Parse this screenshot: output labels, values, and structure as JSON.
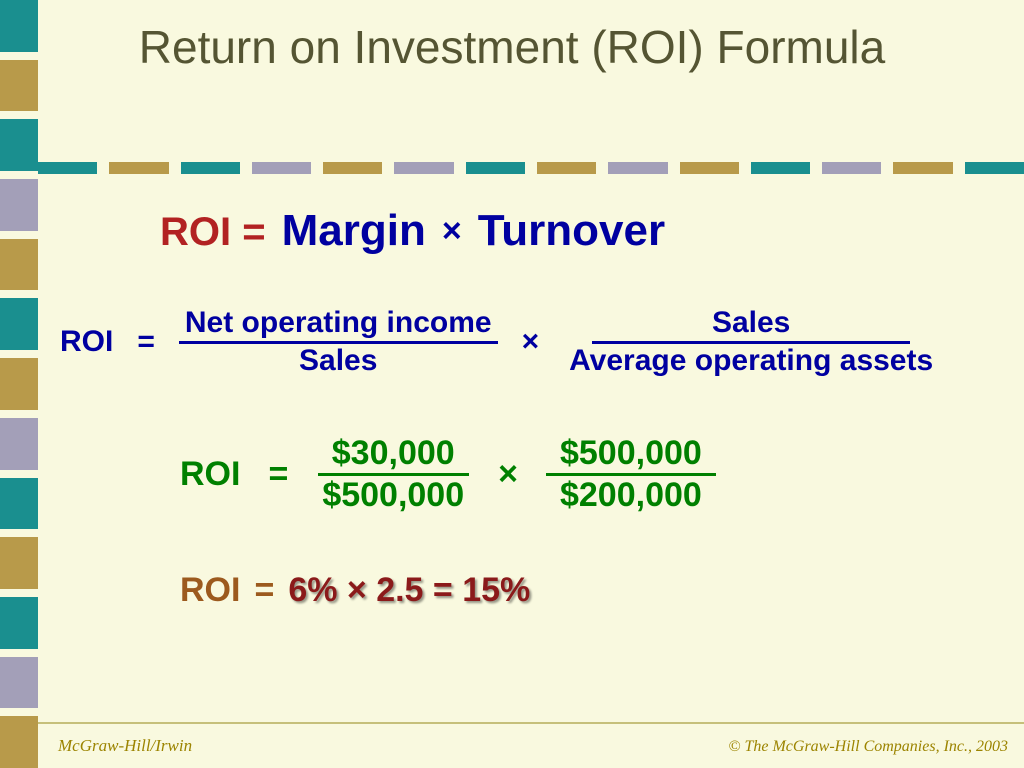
{
  "title": "Return on Investment (ROI) Formula",
  "left_bar_colors": [
    "#1a8f8f",
    "#b89a4a",
    "#1a8f8f",
    "#a39fb8",
    "#b89a4a",
    "#1a8f8f",
    "#b89a4a",
    "#a39fb8",
    "#1a8f8f",
    "#b89a4a",
    "#1a8f8f",
    "#a39fb8",
    "#b89a4a"
  ],
  "top_bar_colors": [
    "#1a8f8f",
    "#b89a4a",
    "#1a8f8f",
    "#a39fb8",
    "#b89a4a",
    "#a39fb8",
    "#1a8f8f",
    "#b89a4a",
    "#a39fb8",
    "#b89a4a",
    "#1a8f8f",
    "#a39fb8",
    "#b89a4a",
    "#1a8f8f"
  ],
  "row1": {
    "lhs": "ROI =",
    "term1": "Margin",
    "times": "×",
    "term2": "Turnover"
  },
  "row2": {
    "lhs": "ROI",
    "eq": "=",
    "times": "×",
    "frac1": {
      "num": "Net operating income",
      "den": "Sales"
    },
    "frac2": {
      "num": "Sales",
      "den": "Average operating assets"
    }
  },
  "row3": {
    "lhs": "ROI",
    "eq": "=",
    "times": "×",
    "frac1": {
      "num": "$30,000",
      "den": "$500,000"
    },
    "frac2": {
      "num": "$500,000",
      "den": "$200,000"
    }
  },
  "row4": {
    "lhs": "ROI",
    "eq": "=",
    "result": "6% × 2.5 = 15%"
  },
  "footer": {
    "left": "McGraw-Hill/Irwin",
    "right": "© The McGraw-Hill Companies, Inc., 2003",
    "rule_color": "#c6c07a"
  },
  "colors": {
    "background": "#f9f9df",
    "title": "#555533",
    "roi_red": "#b22222",
    "blue": "#0000a0",
    "green": "#008000",
    "brown": "#9c5a1e",
    "dark_red": "#8b1a1a",
    "olive": "#9c8400"
  }
}
